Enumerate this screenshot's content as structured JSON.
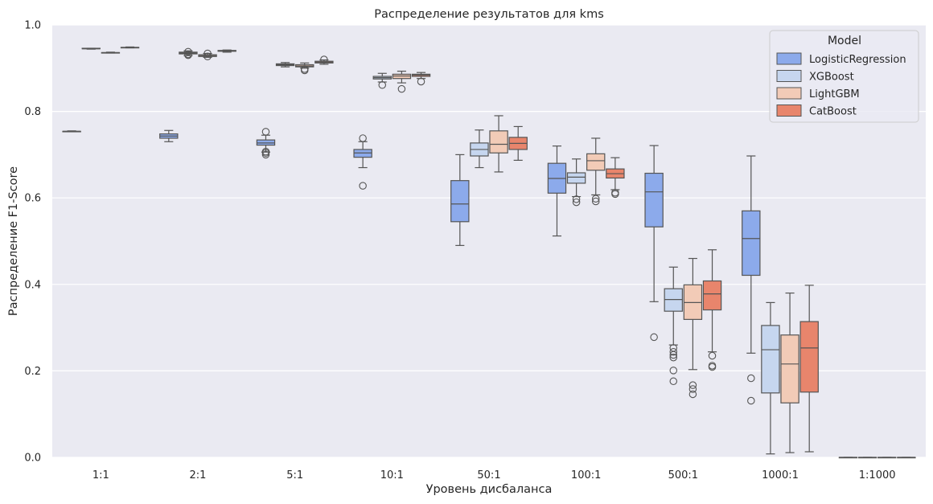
{
  "chart_data": {
    "type": "box",
    "title": "Распределение результатов для kms",
    "xlabel": "Уровень дисбаланса",
    "ylabel": "Распределение F1-Score",
    "ylim": [
      0,
      1
    ],
    "yticks": [
      "0.0",
      "0.2",
      "0.4",
      "0.6",
      "0.8",
      "1.0"
    ],
    "grid": true,
    "legend_position": "top-right",
    "legend_title": "Model",
    "categories": [
      "1:1",
      "2:1",
      "5:1",
      "10:1",
      "50:1",
      "100:1",
      "500:1",
      "1000:1",
      "1:1000"
    ],
    "series": [
      {
        "name": "LogisticRegression",
        "color": "#8caaeb",
        "boxes": [
          {
            "whislo": 0.753,
            "q1": 0.753,
            "med": 0.754,
            "q3": 0.754,
            "whishi": 0.755,
            "fliers": []
          },
          {
            "whislo": 0.73,
            "q1": 0.738,
            "med": 0.743,
            "q3": 0.748,
            "whishi": 0.756,
            "fliers": []
          },
          {
            "whislo": 0.706,
            "q1": 0.722,
            "med": 0.727,
            "q3": 0.734,
            "whishi": 0.745,
            "fliers": [
              0.7,
              0.704,
              0.707,
              0.753
            ]
          },
          {
            "whislo": 0.67,
            "q1": 0.694,
            "med": 0.704,
            "q3": 0.712,
            "whishi": 0.73,
            "fliers": [
              0.628,
              0.738
            ]
          },
          {
            "whislo": 0.49,
            "q1": 0.545,
            "med": 0.586,
            "q3": 0.64,
            "whishi": 0.7,
            "fliers": []
          },
          {
            "whislo": 0.512,
            "q1": 0.611,
            "med": 0.645,
            "q3": 0.68,
            "whishi": 0.72,
            "fliers": []
          },
          {
            "whislo": 0.36,
            "q1": 0.533,
            "med": 0.614,
            "q3": 0.657,
            "whishi": 0.721,
            "fliers": [
              0.278
            ]
          },
          {
            "whislo": 0.241,
            "q1": 0.421,
            "med": 0.506,
            "q3": 0.57,
            "whishi": 0.697,
            "fliers": [
              0.131,
              0.183
            ]
          },
          {
            "whislo": 0.0,
            "q1": 0.0,
            "med": 0.0,
            "q3": 0.0,
            "whishi": 0.0,
            "fliers": []
          }
        ]
      },
      {
        "name": "XGBoost",
        "color": "#c6d6ef",
        "boxes": [
          {
            "whislo": 0.944,
            "q1": 0.945,
            "med": 0.945,
            "q3": 0.946,
            "whishi": 0.946,
            "fliers": []
          },
          {
            "whislo": 0.929,
            "q1": 0.933,
            "med": 0.935,
            "q3": 0.937,
            "whishi": 0.94,
            "fliers": [
              0.93,
              0.932,
              0.938
            ]
          },
          {
            "whislo": 0.903,
            "q1": 0.906,
            "med": 0.908,
            "q3": 0.91,
            "whishi": 0.913,
            "fliers": []
          },
          {
            "whislo": 0.868,
            "q1": 0.875,
            "med": 0.878,
            "q3": 0.881,
            "whishi": 0.888,
            "fliers": [
              0.861
            ]
          },
          {
            "whislo": 0.67,
            "q1": 0.697,
            "med": 0.712,
            "q3": 0.727,
            "whishi": 0.757,
            "fliers": []
          },
          {
            "whislo": 0.603,
            "q1": 0.634,
            "med": 0.648,
            "q3": 0.658,
            "whishi": 0.69,
            "fliers": [
              0.59,
              0.597
            ]
          },
          {
            "whislo": 0.26,
            "q1": 0.338,
            "med": 0.365,
            "q3": 0.39,
            "whishi": 0.44,
            "fliers": [
              0.176,
              0.201,
              0.231,
              0.237,
              0.244,
              0.253
            ]
          },
          {
            "whislo": 0.008,
            "q1": 0.149,
            "med": 0.249,
            "q3": 0.305,
            "whishi": 0.358,
            "fliers": []
          },
          {
            "whislo": 0.0,
            "q1": 0.0,
            "med": 0.0,
            "q3": 0.0,
            "whishi": 0.0,
            "fliers": []
          }
        ]
      },
      {
        "name": "LightGBM",
        "color": "#f2cbb7",
        "boxes": [
          {
            "whislo": 0.935,
            "q1": 0.935,
            "med": 0.936,
            "q3": 0.936,
            "whishi": 0.937,
            "fliers": []
          },
          {
            "whislo": 0.925,
            "q1": 0.927,
            "med": 0.929,
            "q3": 0.931,
            "whishi": 0.934,
            "fliers": [
              0.927,
              0.934
            ]
          },
          {
            "whislo": 0.9,
            "q1": 0.903,
            "med": 0.905,
            "q3": 0.908,
            "whishi": 0.912,
            "fliers": [
              0.895,
              0.898
            ]
          },
          {
            "whislo": 0.866,
            "q1": 0.876,
            "med": 0.882,
            "q3": 0.886,
            "whishi": 0.893,
            "fliers": [
              0.852
            ]
          },
          {
            "whislo": 0.66,
            "q1": 0.704,
            "med": 0.724,
            "q3": 0.755,
            "whishi": 0.79,
            "fliers": []
          },
          {
            "whislo": 0.607,
            "q1": 0.664,
            "med": 0.686,
            "q3": 0.702,
            "whishi": 0.738,
            "fliers": [
              0.592,
              0.598
            ]
          },
          {
            "whislo": 0.203,
            "q1": 0.319,
            "med": 0.358,
            "q3": 0.399,
            "whishi": 0.46,
            "fliers": [
              0.146,
              0.158,
              0.167
            ]
          },
          {
            "whislo": 0.011,
            "q1": 0.126,
            "med": 0.216,
            "q3": 0.283,
            "whishi": 0.38,
            "fliers": []
          },
          {
            "whislo": 0.0,
            "q1": 0.0,
            "med": 0.0,
            "q3": 0.0,
            "whishi": 0.0,
            "fliers": []
          }
        ]
      },
      {
        "name": "CatBoost",
        "color": "#e8856c",
        "boxes": [
          {
            "whislo": 0.947,
            "q1": 0.947,
            "med": 0.948,
            "q3": 0.948,
            "whishi": 0.949,
            "fliers": []
          },
          {
            "whislo": 0.937,
            "q1": 0.939,
            "med": 0.94,
            "q3": 0.941,
            "whishi": 0.942,
            "fliers": []
          },
          {
            "whislo": 0.909,
            "q1": 0.912,
            "med": 0.914,
            "q3": 0.916,
            "whishi": 0.919,
            "fliers": [
              0.92
            ]
          },
          {
            "whislo": 0.876,
            "q1": 0.881,
            "med": 0.884,
            "q3": 0.886,
            "whishi": 0.89,
            "fliers": [
              0.869
            ]
          },
          {
            "whislo": 0.687,
            "q1": 0.712,
            "med": 0.726,
            "q3": 0.74,
            "whishi": 0.765,
            "fliers": []
          },
          {
            "whislo": 0.619,
            "q1": 0.646,
            "med": 0.656,
            "q3": 0.667,
            "whishi": 0.693,
            "fliers": [
              0.609,
              0.612
            ]
          },
          {
            "whislo": 0.244,
            "q1": 0.341,
            "med": 0.378,
            "q3": 0.408,
            "whishi": 0.48,
            "fliers": [
              0.209,
              0.212,
              0.235
            ]
          },
          {
            "whislo": 0.013,
            "q1": 0.151,
            "med": 0.253,
            "q3": 0.314,
            "whishi": 0.398,
            "fliers": []
          },
          {
            "whislo": 0.0,
            "q1": 0.0,
            "med": 0.0,
            "q3": 0.0,
            "whishi": 0.0,
            "fliers": []
          }
        ]
      }
    ]
  }
}
